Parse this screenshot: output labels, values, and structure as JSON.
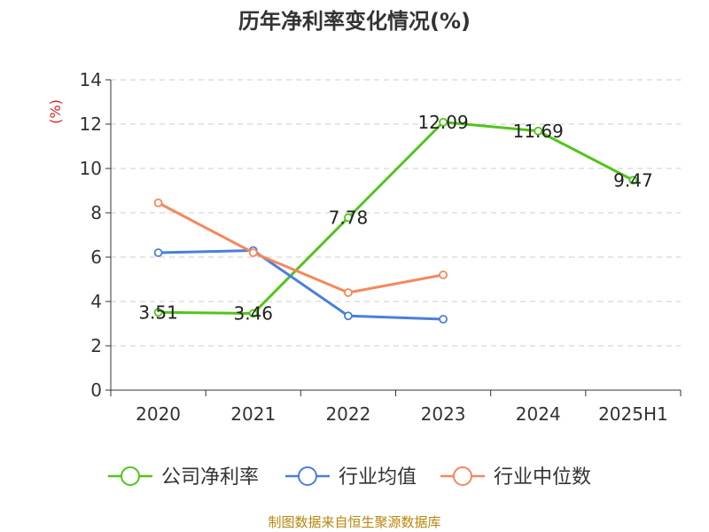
{
  "chart_data": {
    "type": "line",
    "title": "历年净利率变化情况(%)",
    "ylabel": "(%)",
    "xlabel": "",
    "categories": [
      "2020",
      "2021",
      "2022",
      "2023",
      "2024",
      "2025H1"
    ],
    "ylim": [
      0,
      14
    ],
    "yticks": [
      0,
      2,
      4,
      6,
      8,
      10,
      12,
      14
    ],
    "grid": "horizontal dashed",
    "legend_position": "bottom",
    "series": [
      {
        "name": "公司净利率",
        "color": "#52c41a",
        "values": [
          3.51,
          3.46,
          7.78,
          12.09,
          11.69,
          9.47
        ],
        "labels": [
          "3.51",
          "3.46",
          "7.78",
          "12.09",
          "11.69",
          "9.47"
        ]
      },
      {
        "name": "行业均值",
        "color": "#4a7fdc",
        "values": [
          6.2,
          6.3,
          3.35,
          3.2,
          null,
          null
        ]
      },
      {
        "name": "行业中位数",
        "color": "#f5885a",
        "values": [
          8.45,
          6.2,
          4.4,
          5.2,
          null,
          null
        ]
      }
    ]
  },
  "footer": {
    "source": "制图数据来自恒生聚源数据库"
  }
}
